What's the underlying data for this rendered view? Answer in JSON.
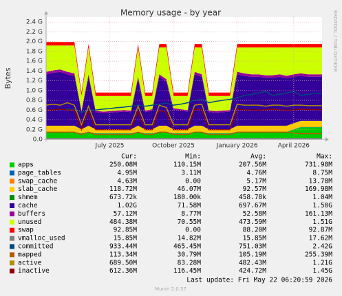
{
  "chart_data": {
    "type": "area",
    "title": "Memory usage - by year",
    "y_label": "Bytes",
    "side_note": "RRDTOOL / TOBI OETIKER",
    "footer": "Last update: Fri May 22 06:20:59 2026",
    "version": "Munin 2.0.57",
    "grid": true,
    "ylim": [
      0,
      2.5
    ],
    "yticks": [
      {
        "value": 0,
        "label": "0.0"
      },
      {
        "value": 0.2,
        "label": "0.2 G"
      },
      {
        "value": 0.4,
        "label": "0.4 G"
      },
      {
        "value": 0.6,
        "label": "0.6 G"
      },
      {
        "value": 0.8,
        "label": "0.8 G"
      },
      {
        "value": 1.0,
        "label": "1.0 G"
      },
      {
        "value": 1.2,
        "label": "1.2 G"
      },
      {
        "value": 1.4,
        "label": "1.4 G"
      },
      {
        "value": 1.6,
        "label": "1.6 G"
      },
      {
        "value": 1.8,
        "label": "1.8 G"
      },
      {
        "value": 2.0,
        "label": "2.0 G"
      },
      {
        "value": 2.2,
        "label": "2.2 G"
      },
      {
        "value": 2.4,
        "label": "2.4 G"
      }
    ],
    "categories": [
      null,
      null,
      null,
      null,
      null,
      null,
      null,
      null,
      null,
      "July 2025",
      null,
      null,
      null,
      null,
      null,
      null,
      null,
      null,
      "October 2025",
      null,
      null,
      null,
      null,
      null,
      null,
      null,
      null,
      "January 2026",
      null,
      null,
      null,
      null,
      null,
      null,
      null,
      "April 2026",
      null,
      null,
      null,
      null
    ],
    "series": [
      {
        "name": "apps",
        "color": "#00cc00",
        "draw": "area",
        "values": [
          0.15,
          0.15,
          0.15,
          0.15,
          0.15,
          0.12,
          0.15,
          0.12,
          0.12,
          0.12,
          0.12,
          0.12,
          0.12,
          0.15,
          0.12,
          0.12,
          0.15,
          0.15,
          0.12,
          0.12,
          0.12,
          0.15,
          0.15,
          0.12,
          0.12,
          0.12,
          0.12,
          0.15,
          0.15,
          0.15,
          0.15,
          0.15,
          0.15,
          0.15,
          0.15,
          0.2,
          0.25,
          0.25,
          0.25,
          0.25
        ]
      },
      {
        "name": "page_tables",
        "color": "#0066b3",
        "draw": "area",
        "values": [
          0.005,
          0.005,
          0.005,
          0.005,
          0.005,
          0.004,
          0.005,
          0.004,
          0.004,
          0.004,
          0.004,
          0.004,
          0.004,
          0.005,
          0.004,
          0.004,
          0.005,
          0.005,
          0.004,
          0.004,
          0.004,
          0.005,
          0.005,
          0.004,
          0.004,
          0.004,
          0.004,
          0.005,
          0.005,
          0.005,
          0.005,
          0.005,
          0.005,
          0.005,
          0.005,
          0.005,
          0.005,
          0.005,
          0.005,
          0.005
        ]
      },
      {
        "name": "swap_cache",
        "color": "#ff8000",
        "draw": "area",
        "values": [
          0.005,
          0.005,
          0.005,
          0.005,
          0.005,
          0.003,
          0.005,
          0.003,
          0.003,
          0.003,
          0.003,
          0.003,
          0.003,
          0.005,
          0.003,
          0.003,
          0.005,
          0.005,
          0.003,
          0.003,
          0.003,
          0.005,
          0.005,
          0.003,
          0.003,
          0.003,
          0.003,
          0.005,
          0.005,
          0.005,
          0.005,
          0.005,
          0.005,
          0.005,
          0.005,
          0.005,
          0.005,
          0.005,
          0.005,
          0.005
        ]
      },
      {
        "name": "slab_cache",
        "color": "#ffcc00",
        "draw": "area",
        "values": [
          0.12,
          0.12,
          0.12,
          0.12,
          0.12,
          0.08,
          0.12,
          0.08,
          0.08,
          0.08,
          0.08,
          0.08,
          0.08,
          0.12,
          0.08,
          0.08,
          0.12,
          0.12,
          0.08,
          0.08,
          0.08,
          0.12,
          0.12,
          0.08,
          0.08,
          0.08,
          0.08,
          0.12,
          0.12,
          0.12,
          0.12,
          0.12,
          0.12,
          0.12,
          0.12,
          0.12,
          0.12,
          0.12,
          0.12,
          0.12
        ]
      },
      {
        "name": "shmem",
        "color": "#008f00",
        "draw": "area",
        "values": [
          0.001,
          0.001,
          0.001,
          0.001,
          0.001,
          0.001,
          0.001,
          0.001,
          0.001,
          0.001,
          0.001,
          0.001,
          0.001,
          0.001,
          0.001,
          0.001,
          0.001,
          0.001,
          0.001,
          0.001,
          0.001,
          0.001,
          0.001,
          0.001,
          0.001,
          0.001,
          0.001,
          0.001,
          0.001,
          0.001,
          0.001,
          0.001,
          0.001,
          0.001,
          0.001,
          0.001,
          0.001,
          0.001,
          0.001,
          0.001
        ]
      },
      {
        "name": "cache",
        "color": "#330099",
        "draw": "area",
        "values": [
          1.05,
          1.08,
          1.1,
          1.05,
          1.02,
          0.35,
          1.0,
          0.35,
          0.33,
          0.34,
          0.35,
          0.36,
          0.35,
          0.95,
          0.35,
          0.38,
          1.0,
          0.9,
          0.4,
          0.38,
          0.36,
          1.05,
          1.0,
          0.35,
          0.34,
          0.35,
          0.36,
          1.05,
          1.02,
          1.0,
          1.0,
          0.98,
          0.98,
          1.0,
          0.97,
          0.95,
          0.92,
          0.9,
          0.9,
          0.9
        ]
      },
      {
        "name": "buffers",
        "color": "#990099",
        "draw": "area",
        "values": [
          0.05,
          0.05,
          0.05,
          0.05,
          0.05,
          0.03,
          0.05,
          0.03,
          0.03,
          0.03,
          0.03,
          0.03,
          0.03,
          0.05,
          0.03,
          0.03,
          0.05,
          0.05,
          0.03,
          0.03,
          0.03,
          0.05,
          0.05,
          0.03,
          0.03,
          0.03,
          0.03,
          0.05,
          0.05,
          0.05,
          0.05,
          0.05,
          0.05,
          0.05,
          0.05,
          0.05,
          0.05,
          0.05,
          0.05,
          0.05
        ]
      },
      {
        "name": "unused",
        "color": "#ccff00",
        "draw": "area",
        "values": [
          0.54,
          0.51,
          0.49,
          0.54,
          0.57,
          0.3,
          0.55,
          0.3,
          0.32,
          0.31,
          0.3,
          0.29,
          0.3,
          0.6,
          0.3,
          0.27,
          0.55,
          0.65,
          0.25,
          0.27,
          0.29,
          0.5,
          0.55,
          0.3,
          0.31,
          0.3,
          0.29,
          0.5,
          0.53,
          0.55,
          0.55,
          0.57,
          0.57,
          0.55,
          0.58,
          0.55,
          0.53,
          0.55,
          0.55,
          0.55
        ]
      },
      {
        "name": "swap",
        "color": "#ff0000",
        "draw": "area",
        "values": [
          0.07,
          0.07,
          0.07,
          0.07,
          0.07,
          0.07,
          0.07,
          0.07,
          0.07,
          0.07,
          0.07,
          0.07,
          0.07,
          0.07,
          0.07,
          0.07,
          0.07,
          0.07,
          0.07,
          0.07,
          0.07,
          0.07,
          0.07,
          0.07,
          0.07,
          0.07,
          0.07,
          0.07,
          0.07,
          0.07,
          0.07,
          0.07,
          0.07,
          0.07,
          0.07,
          0.07,
          0.07,
          0.07,
          0.07,
          0.07
        ]
      },
      {
        "name": "vmalloc_used",
        "color": "#808080",
        "draw": "line",
        "values": [
          0.016,
          0.016,
          0.016,
          0.016,
          0.016,
          0.015,
          0.016,
          0.015,
          0.015,
          0.015,
          0.015,
          0.015,
          0.015,
          0.016,
          0.015,
          0.015,
          0.016,
          0.016,
          0.015,
          0.015,
          0.015,
          0.016,
          0.016,
          0.015,
          0.015,
          0.015,
          0.015,
          0.016,
          0.016,
          0.016,
          0.016,
          0.016,
          0.016,
          0.016,
          0.016,
          0.016,
          0.016,
          0.016,
          0.016,
          0.016
        ]
      },
      {
        "name": "committed",
        "color": "#00487d",
        "draw": "line",
        "values": [
          0.6,
          0.6,
          0.61,
          0.62,
          0.62,
          0.55,
          0.6,
          0.6,
          0.62,
          0.63,
          0.65,
          0.66,
          0.68,
          0.7,
          0.68,
          0.7,
          0.72,
          0.74,
          0.7,
          0.72,
          0.75,
          0.8,
          0.82,
          0.75,
          0.78,
          0.8,
          0.82,
          0.85,
          0.9,
          0.92,
          0.95,
          0.98,
          0.9,
          0.92,
          0.95,
          0.98,
          0.9,
          0.92,
          0.95,
          0.93
        ]
      },
      {
        "name": "mapped",
        "color": "#b35a00",
        "draw": "line",
        "values": [
          0.15,
          0.15,
          0.15,
          0.15,
          0.15,
          0.1,
          0.15,
          0.1,
          0.1,
          0.1,
          0.1,
          0.1,
          0.1,
          0.15,
          0.1,
          0.1,
          0.15,
          0.15,
          0.1,
          0.1,
          0.1,
          0.15,
          0.15,
          0.1,
          0.1,
          0.1,
          0.1,
          0.15,
          0.15,
          0.15,
          0.15,
          0.15,
          0.15,
          0.15,
          0.15,
          0.13,
          0.12,
          0.12,
          0.12,
          0.12
        ]
      },
      {
        "name": "active",
        "color": "#b38f00",
        "draw": "line",
        "values": [
          0.7,
          0.72,
          0.7,
          0.75,
          0.7,
          0.3,
          0.68,
          0.3,
          0.3,
          0.3,
          0.3,
          0.3,
          0.3,
          0.68,
          0.3,
          0.3,
          0.7,
          0.65,
          0.3,
          0.3,
          0.3,
          0.7,
          0.72,
          0.3,
          0.3,
          0.3,
          0.3,
          0.72,
          0.7,
          0.7,
          0.7,
          0.68,
          0.7,
          0.7,
          0.68,
          0.7,
          0.7,
          0.69,
          0.69,
          0.69
        ]
      },
      {
        "name": "inactive",
        "color": "#8f0000",
        "draw": "line",
        "values": [
          0.6,
          0.6,
          0.62,
          0.6,
          0.6,
          0.2,
          0.58,
          0.2,
          0.2,
          0.2,
          0.2,
          0.2,
          0.2,
          0.58,
          0.2,
          0.2,
          0.6,
          0.55,
          0.2,
          0.2,
          0.2,
          0.62,
          0.6,
          0.2,
          0.2,
          0.2,
          0.2,
          0.62,
          0.6,
          0.6,
          0.6,
          0.6,
          0.62,
          0.6,
          0.6,
          0.6,
          0.62,
          0.61,
          0.61,
          0.61
        ]
      }
    ],
    "legend_table": {
      "headers": [
        "Cur:",
        "Min:",
        "Avg:",
        "Max:"
      ],
      "rows": [
        [
          "250.08M",
          "110.15M",
          "207.56M",
          "731.98M"
        ],
        [
          "4.95M",
          "3.11M",
          "4.76M",
          "8.75M"
        ],
        [
          "4.63M",
          "0.00",
          "5.17M",
          "13.78M"
        ],
        [
          "118.72M",
          "46.07M",
          "92.57M",
          "169.98M"
        ],
        [
          "673.72k",
          "180.00k",
          "458.78k",
          "1.04M"
        ],
        [
          "1.02G",
          "71.58M",
          "697.67M",
          "1.50G"
        ],
        [
          "57.12M",
          "8.77M",
          "52.58M",
          "161.13M"
        ],
        [
          "484.38M",
          "70.55M",
          "473.59M",
          "1.51G"
        ],
        [
          "92.85M",
          "0.00",
          "88.20M",
          "92.87M"
        ],
        [
          "15.85M",
          "14.82M",
          "15.85M",
          "17.62M"
        ],
        [
          "933.44M",
          "465.45M",
          "751.03M",
          "2.42G"
        ],
        [
          "113.34M",
          "30.79M",
          "105.19M",
          "255.39M"
        ],
        [
          "689.50M",
          "83.28M",
          "482.43M",
          "1.21G"
        ],
        [
          "612.36M",
          "116.45M",
          "424.72M",
          "1.45G"
        ]
      ]
    }
  }
}
